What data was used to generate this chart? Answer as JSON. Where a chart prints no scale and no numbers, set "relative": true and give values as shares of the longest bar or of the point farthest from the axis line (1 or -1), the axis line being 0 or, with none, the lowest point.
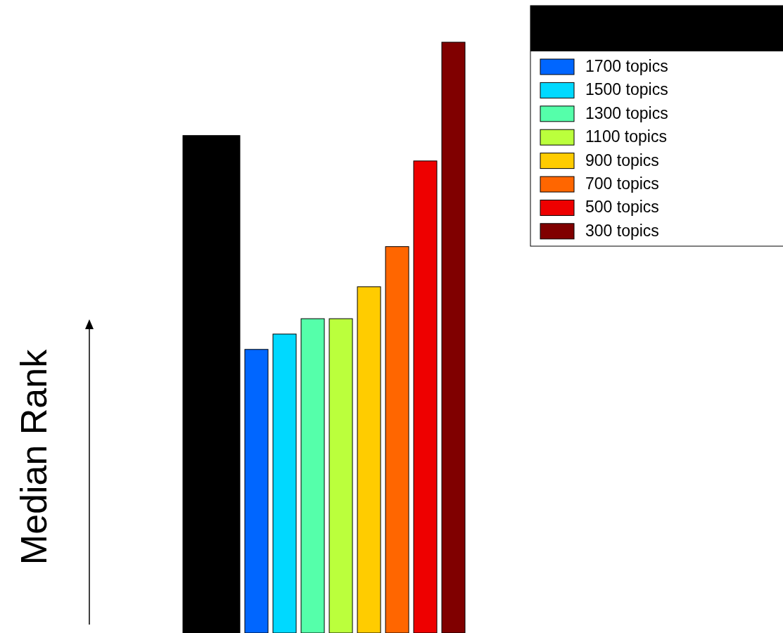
{
  "chart_data": {
    "type": "bar",
    "ylabel": "Median Rank",
    "relative": true,
    "legend": "top right",
    "categories": [
      null
    ],
    "series": [
      {
        "color": "#000000",
        "values": [
          0.842
        ]
      },
      {
        "name": "1700 topics",
        "color": "#0066ff",
        "values": [
          0.48
        ]
      },
      {
        "name": "1500 topics",
        "color": "#00d9ff",
        "values": [
          0.506
        ]
      },
      {
        "name": "1300 topics",
        "color": "#55ffaa",
        "values": [
          0.532
        ]
      },
      {
        "name": "1100 topics",
        "color": "#bbff3c",
        "values": [
          0.532
        ]
      },
      {
        "name": "900 topics",
        "color": "#ffcc00",
        "values": [
          0.586
        ]
      },
      {
        "name": "700 topics",
        "color": "#ff6600",
        "values": [
          0.654
        ]
      },
      {
        "name": "500 topics",
        "color": "#ee0000",
        "values": [
          0.799
        ]
      },
      {
        "name": "300 topics",
        "color": "#800000",
        "values": [
          1
        ]
      }
    ]
  }
}
